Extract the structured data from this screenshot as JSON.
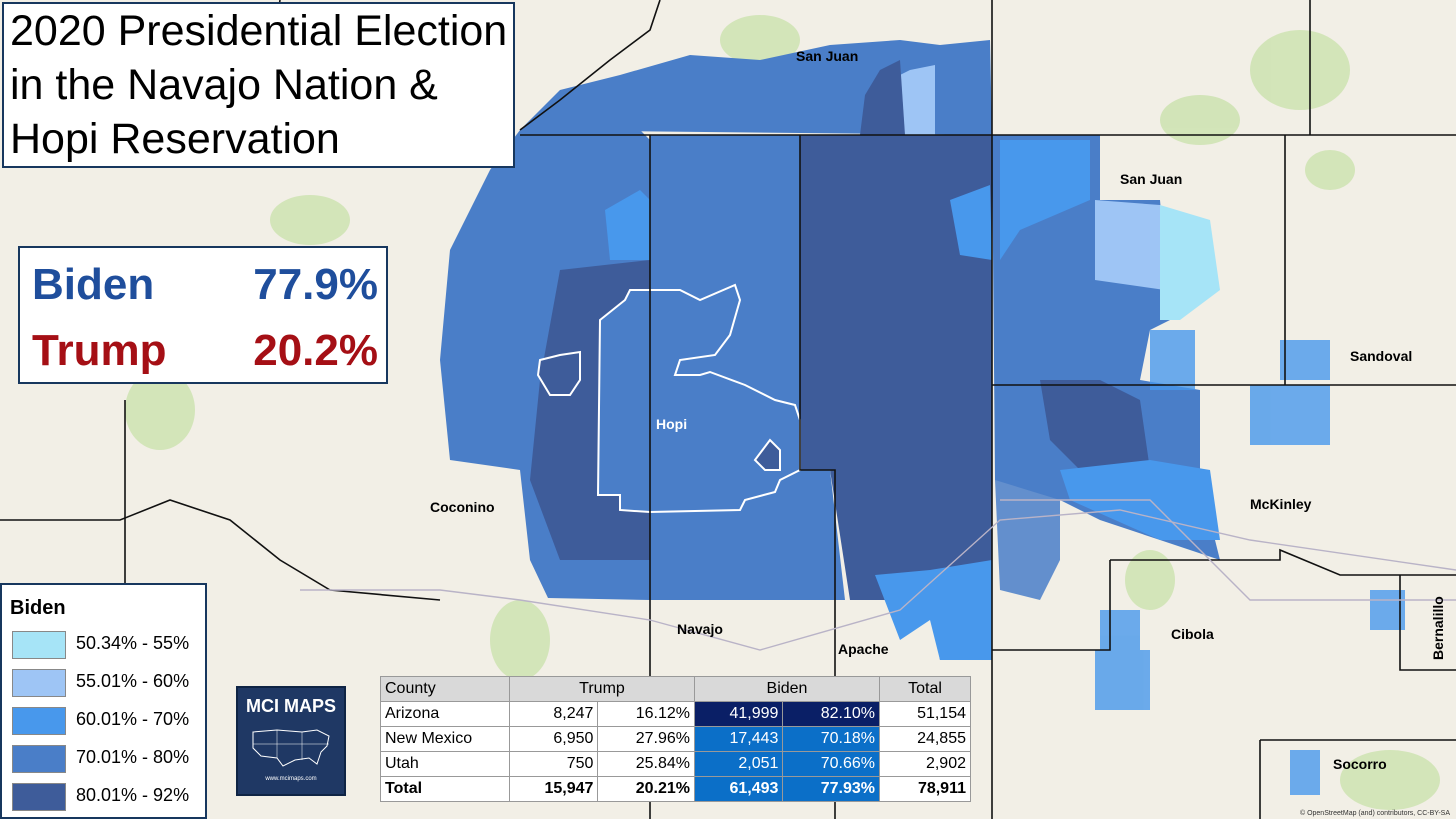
{
  "title": {
    "line1": "2020 Presidential Election",
    "line2": "in the Navajo Nation &",
    "line3": "Hopi Reservation"
  },
  "summary": {
    "biden_label": "Biden",
    "biden_pct": "77.9%",
    "trump_label": "Trump",
    "trump_pct": "20.2%",
    "biden_color": "#1f4e9c",
    "trump_color": "#a50f15"
  },
  "legend": {
    "title": "Biden",
    "items": [
      {
        "label": "50.34% - 55%",
        "color": "#a6e4f7"
      },
      {
        "label": "55.01% - 60%",
        "color": "#9ec5f5"
      },
      {
        "label": "60.01% - 70%",
        "color": "#4898ec"
      },
      {
        "label": "70.01% - 80%",
        "color": "#4a7ec8"
      },
      {
        "label": "80.01% - 92%",
        "color": "#3e5c9a"
      }
    ]
  },
  "logo": {
    "text": "MCI MAPS",
    "url": "www.mcimaps.com"
  },
  "table": {
    "headers": {
      "county": "County",
      "trump": "Trump",
      "biden": "Biden",
      "total": "Total"
    },
    "rows": [
      {
        "county": "Arizona",
        "trump_votes": "8,247",
        "trump_pct": "16.12%",
        "biden_votes": "41,999",
        "biden_pct": "82.10%",
        "total": "51,154",
        "biden_fill": "#0a1f66",
        "biden_text": "#ffffff"
      },
      {
        "county": "New Mexico",
        "trump_votes": "6,950",
        "trump_pct": "27.96%",
        "biden_votes": "17,443",
        "biden_pct": "70.18%",
        "total": "24,855",
        "biden_fill": "#0b6fc8",
        "biden_text": "#ffffff"
      },
      {
        "county": "Utah",
        "trump_votes": "750",
        "trump_pct": "25.84%",
        "biden_votes": "2,051",
        "biden_pct": "70.66%",
        "total": "2,902",
        "biden_fill": "#0b6fc8",
        "biden_text": "#ffffff"
      },
      {
        "county": "Total",
        "trump_votes": "15,947",
        "trump_pct": "20.21%",
        "biden_votes": "61,493",
        "biden_pct": "77.93%",
        "total": "78,911",
        "biden_fill": "#0b6fc8",
        "biden_text": "#ffffff"
      }
    ]
  },
  "map_labels": {
    "san_juan_ut": "San Juan",
    "san_juan_nm": "San Juan",
    "sandoval": "Sandoval",
    "hopi": "Hopi",
    "coconino": "Coconino",
    "mckinley": "McKinley",
    "navajo": "Navajo",
    "apache": "Apache",
    "cibola": "Cibola",
    "bernalillo": "Bernalillo",
    "socorro": "Socorro"
  },
  "attribution": "© OpenStreetMap (and) contributors, CC-BY-SA"
}
